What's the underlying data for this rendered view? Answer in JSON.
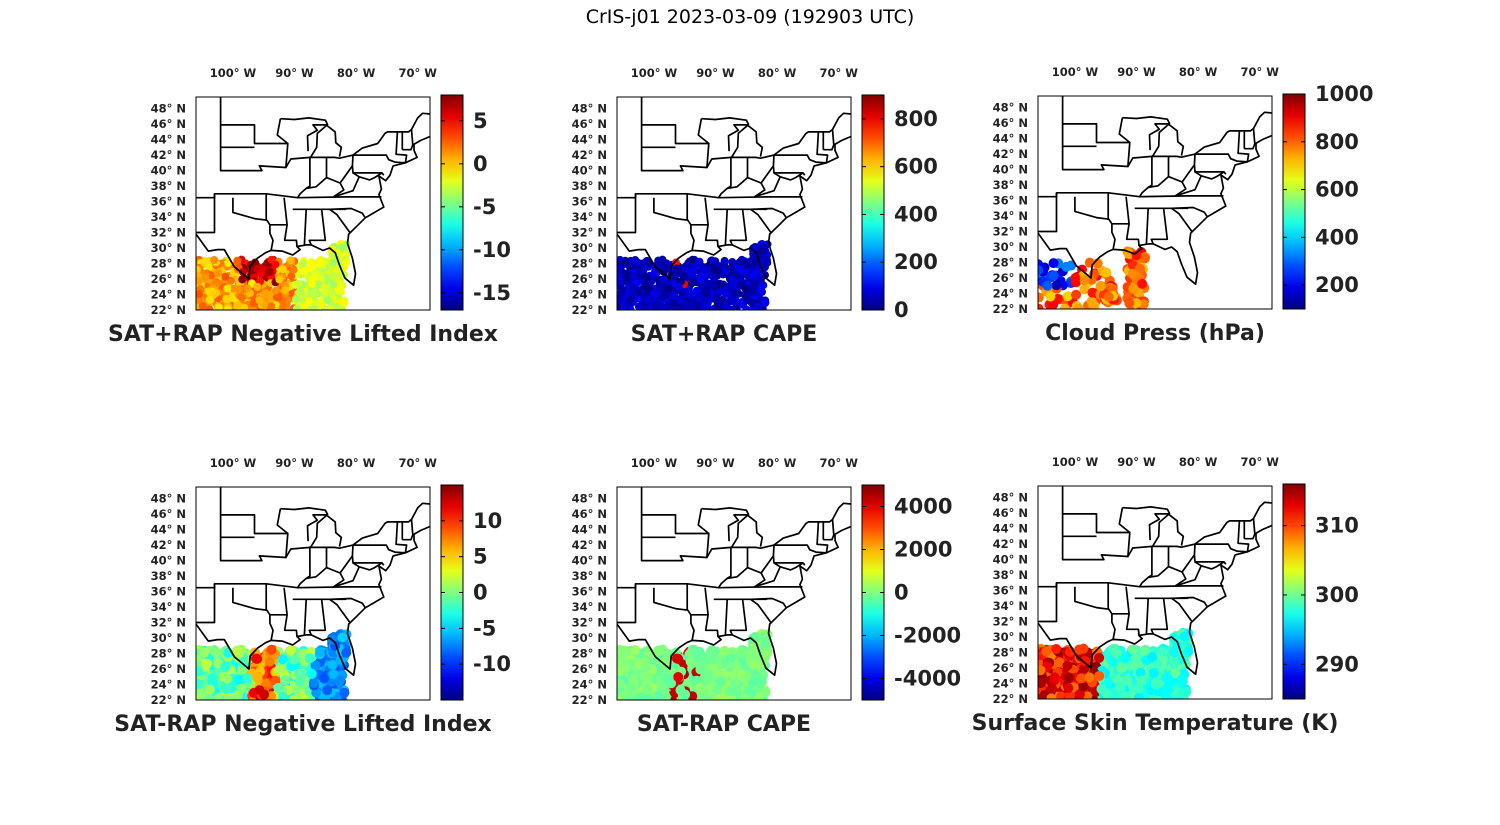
{
  "figure": {
    "title": "CrIS-j01 2023-03-09 (192903 UTC)"
  },
  "map_axes": {
    "lon_ticks": [
      "100° W",
      "90° W",
      "80° W",
      "70° W"
    ],
    "lon_values": [
      -100,
      -90,
      -80,
      -70
    ],
    "lat_ticks": [
      "48° N",
      "46° N",
      "44° N",
      "42° N",
      "40° N",
      "38° N",
      "36° N",
      "34° N",
      "32° N",
      "30° N",
      "28° N",
      "26° N",
      "24° N",
      "22° N"
    ],
    "lat_values": [
      48,
      46,
      44,
      42,
      40,
      38,
      36,
      34,
      32,
      30,
      28,
      26,
      24,
      22
    ],
    "lon_range": [
      -106,
      -68
    ],
    "lat_range": [
      22,
      49.5
    ]
  },
  "colormap": "jet",
  "panels": [
    {
      "id": "p1",
      "title": "SAT+RAP Negative Lifted Index",
      "colorbar": {
        "min": -17,
        "max": 8,
        "ticks": [
          5,
          0,
          -5,
          -10,
          -15
        ],
        "tick_labels": [
          "5",
          "0",
          "-5",
          "-10",
          "-15"
        ]
      },
      "field": "nli"
    },
    {
      "id": "p2",
      "title": "SAT+RAP CAPE",
      "colorbar": {
        "min": 0,
        "max": 900,
        "ticks": [
          800,
          600,
          400,
          200,
          0
        ],
        "tick_labels": [
          "800",
          "600",
          "400",
          "200",
          "0"
        ]
      },
      "field": "cape"
    },
    {
      "id": "p3",
      "title": "Cloud Press (hPa)",
      "colorbar": {
        "min": 100,
        "max": 1000,
        "ticks": [
          1000,
          800,
          600,
          400,
          200
        ],
        "tick_labels": [
          "1000",
          "800",
          "600",
          "400",
          "200"
        ]
      },
      "field": "cloud"
    },
    {
      "id": "p4",
      "title": "SAT-RAP Negative Lifted Index",
      "colorbar": {
        "min": -15,
        "max": 15,
        "ticks": [
          10,
          5,
          0,
          -5,
          -10
        ],
        "tick_labels": [
          "10",
          "5",
          "0",
          "-5",
          "-10"
        ]
      },
      "field": "dnli"
    },
    {
      "id": "p5",
      "title": "SAT-RAP CAPE",
      "colorbar": {
        "min": -5000,
        "max": 5000,
        "ticks": [
          4000,
          2000,
          0,
          -2000,
          -4000
        ],
        "tick_labels": [
          "4000",
          "2000",
          "0",
          "-2000",
          "-4000"
        ]
      },
      "field": "dcape"
    },
    {
      "id": "p6",
      "title": "Surface Skin Temperature (K)",
      "colorbar": {
        "min": 285,
        "max": 316,
        "ticks": [
          310,
          300,
          290
        ],
        "tick_labels": [
          "310",
          "300",
          "290"
        ]
      },
      "field": "skin"
    }
  ]
}
